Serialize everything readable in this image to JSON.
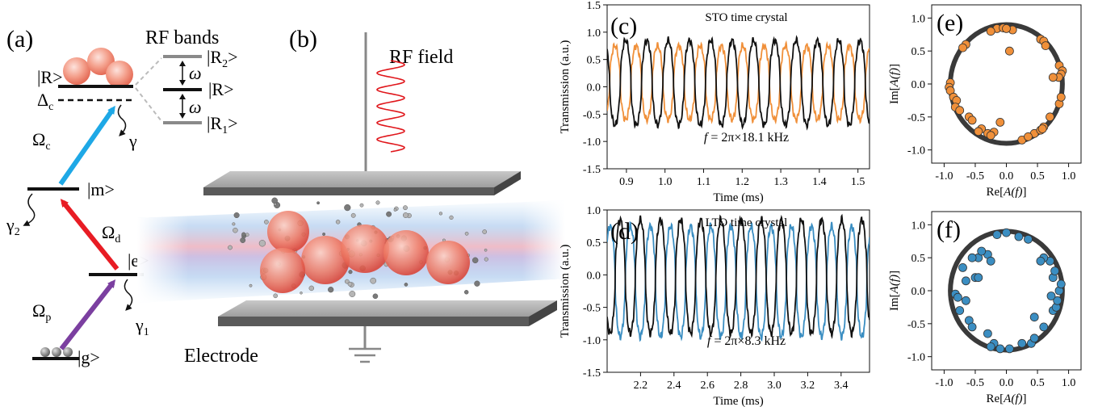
{
  "colors": {
    "rf_red": "#e0161b",
    "probe_purple": "#7b3fa0",
    "coupling_blue": "#1ea8e6",
    "dressing_red": "#e81c24",
    "sto_orange": "#f0903a",
    "lto_blue": "#3b8ec2",
    "ring_gray": "#3a3a3a",
    "plate_gray": "#9a9a9a",
    "atom_pink": "#f4a08c"
  },
  "panel_a": {
    "label": "(a)",
    "rf_bands_title": "RF bands",
    "level_R": "|R>",
    "level_R_band": "|R>",
    "level_R2": "|R",
    "level_R2_sub": "2",
    "level_R1": "|R",
    "level_R1_sub": "1",
    "ket_close": ">",
    "omega": "ω",
    "delta_c": "Δ",
    "delta_c_sub": "c",
    "gamma": "γ",
    "omega_c": "Ω",
    "omega_c_sub": "c",
    "level_m": "|m>",
    "gamma_2": "γ",
    "gamma_2_sub": "2",
    "omega_d": "Ω",
    "omega_d_sub": "d",
    "level_e": "|e>",
    "omega_p": "Ω",
    "omega_p_sub": "p",
    "gamma_1": "γ",
    "gamma_1_sub": "1",
    "level_g": "|g>"
  },
  "panel_b": {
    "label": "(b)",
    "rf_field": "RF field",
    "electrode": "Electrode"
  },
  "chart_data": [
    {
      "panel": "(c)",
      "type": "line",
      "title": "STO time crystal",
      "annotation_f": "f",
      "annotation_rest": " = 2π×18.1 kHz",
      "xlabel": "Time (ms)",
      "ylabel": "Transmission (a.u.)",
      "xlim": [
        0.85,
        1.53
      ],
      "ylim": [
        -1.5,
        1.5
      ],
      "xticks": [
        "0.9",
        "1.0",
        "1.1",
        "1.2",
        "1.3",
        "1.4",
        "1.5"
      ],
      "yticks": [
        "-1.5",
        "-1.0",
        "-0.5",
        "0.0",
        "0.5",
        "1.0",
        "1.5"
      ],
      "series": [
        {
          "color": "#f0903a",
          "frequency_khz": 18.1,
          "amplitude": [
            -0.6,
            0.75
          ],
          "phase_deg": 180
        },
        {
          "color": "#111111",
          "frequency_khz": 18.1,
          "amplitude": [
            -0.7,
            0.85
          ],
          "phase_deg": 0
        }
      ]
    },
    {
      "panel": "(d)",
      "type": "line",
      "title": "LTO time crystal",
      "annotation_f": "f",
      "annotation_rest": " = 2π×8.3 kHz",
      "xlabel": "Time (ms)",
      "ylabel": "Transmission (a.u.)",
      "xlim": [
        2.0,
        3.57
      ],
      "ylim": [
        -1.5,
        1.0
      ],
      "xticks": [
        "2.2",
        "2.4",
        "2.6",
        "2.8",
        "3.0",
        "3.2",
        "3.4"
      ],
      "yticks": [
        "-1.5",
        "-1.0",
        "-0.5",
        "0.0",
        "0.5",
        "1.0"
      ],
      "series": [
        {
          "color": "#3b8ec2",
          "frequency_khz": 8.3,
          "amplitude": [
            -0.95,
            0.75
          ],
          "phase_deg": 180
        },
        {
          "color": "#111111",
          "frequency_khz": 8.3,
          "amplitude": [
            -0.9,
            0.85
          ],
          "phase_deg": 0
        }
      ]
    },
    {
      "panel": "(e)",
      "type": "scatter",
      "xlabel_pre": "Re[",
      "xlabel_it": "A(f)",
      "xlabel_post": "]",
      "ylabel_pre": "Im[",
      "ylabel_it": "A(f)",
      "ylabel_post": "]",
      "xlim": [
        -1.2,
        1.2
      ],
      "ylim": [
        -1.2,
        1.2
      ],
      "xticks": [
        "-1.0",
        "-0.5",
        "0.0",
        "0.5",
        "1.0"
      ],
      "yticks": [
        "-1.0",
        "-0.5",
        "0.0",
        "0.5",
        "1.0"
      ],
      "circle_radius": 0.9,
      "point_color": "#f0903a",
      "points": [
        [
          -0.15,
          0.84
        ],
        [
          -0.05,
          0.85
        ],
        [
          0.1,
          0.82
        ],
        [
          0.0,
          0.84
        ],
        [
          -0.25,
          0.8
        ],
        [
          0.55,
          0.68
        ],
        [
          0.6,
          0.65
        ],
        [
          0.63,
          0.58
        ],
        [
          0.85,
          0.28
        ],
        [
          0.9,
          0.2
        ],
        [
          0.88,
          0.15
        ],
        [
          0.84,
          0.1
        ],
        [
          -0.9,
          0.02
        ],
        [
          -0.92,
          -0.05
        ],
        [
          -0.9,
          -0.1
        ],
        [
          -0.85,
          -0.2
        ],
        [
          -0.8,
          -0.25
        ],
        [
          -0.82,
          -0.35
        ],
        [
          -0.75,
          -0.4
        ],
        [
          -0.6,
          -0.5
        ],
        [
          -0.55,
          -0.55
        ],
        [
          -0.4,
          -0.68
        ],
        [
          -0.45,
          -0.72
        ],
        [
          -0.3,
          -0.75
        ],
        [
          -0.2,
          -0.73
        ],
        [
          -0.25,
          -0.78
        ],
        [
          0.45,
          -0.75
        ],
        [
          0.55,
          -0.7
        ],
        [
          0.6,
          -0.65
        ],
        [
          0.85,
          -0.3
        ],
        [
          0.88,
          -0.2
        ],
        [
          0.7,
          -0.5
        ],
        [
          0.25,
          -0.85
        ],
        [
          0.35,
          -0.8
        ],
        [
          -0.65,
          0.6
        ],
        [
          -0.7,
          0.55
        ],
        [
          0.05,
          0.5
        ],
        [
          -0.1,
          -0.58
        ],
        [
          0.58,
          -0.68
        ],
        [
          0.75,
          0.1
        ]
      ]
    },
    {
      "panel": "(f)",
      "type": "scatter",
      "xlabel_pre": "Re[",
      "xlabel_it": "A(f)",
      "xlabel_post": "]",
      "ylabel_pre": "Im[",
      "ylabel_it": "A(f)",
      "ylabel_post": "]",
      "xlim": [
        -1.2,
        1.2
      ],
      "ylim": [
        -1.2,
        1.2
      ],
      "xticks": [
        "-1.0",
        "-0.5",
        "0.0",
        "0.5",
        "1.0"
      ],
      "yticks": [
        "-1.0",
        "-0.5",
        "0.0",
        "0.5",
        "1.0"
      ],
      "circle_radius": 0.9,
      "point_color": "#3b8ec2",
      "points": [
        [
          -0.15,
          0.85
        ],
        [
          0.0,
          0.88
        ],
        [
          0.2,
          0.82
        ],
        [
          0.35,
          0.78
        ],
        [
          -0.45,
          0.5
        ],
        [
          -0.3,
          0.55
        ],
        [
          -0.4,
          0.6
        ],
        [
          -0.25,
          0.45
        ],
        [
          -0.55,
          0.5
        ],
        [
          -0.7,
          0.35
        ],
        [
          -0.5,
          0.2
        ],
        [
          -0.45,
          0.2
        ],
        [
          -0.82,
          -0.05
        ],
        [
          -0.78,
          -0.1
        ],
        [
          -0.75,
          -0.3
        ],
        [
          -0.6,
          -0.45
        ],
        [
          -0.55,
          -0.55
        ],
        [
          -0.3,
          -0.65
        ],
        [
          -0.2,
          -0.8
        ],
        [
          -0.25,
          -0.85
        ],
        [
          -0.1,
          -0.88
        ],
        [
          0.05,
          -0.88
        ],
        [
          0.25,
          -0.8
        ],
        [
          0.4,
          -0.8
        ],
        [
          0.45,
          -0.72
        ],
        [
          0.6,
          -0.55
        ],
        [
          0.75,
          -0.3
        ],
        [
          0.8,
          -0.25
        ],
        [
          0.85,
          0.0
        ],
        [
          0.88,
          0.1
        ],
        [
          0.7,
          0.45
        ],
        [
          0.6,
          0.5
        ],
        [
          0.75,
          0.2
        ],
        [
          0.45,
          -0.4
        ],
        [
          -0.65,
          -0.15
        ],
        [
          -0.65,
          0.15
        ],
        [
          0.82,
          -0.15
        ],
        [
          0.78,
          0.3
        ],
        [
          0.55,
          0.45
        ],
        [
          0.72,
          -0.08
        ]
      ]
    }
  ]
}
